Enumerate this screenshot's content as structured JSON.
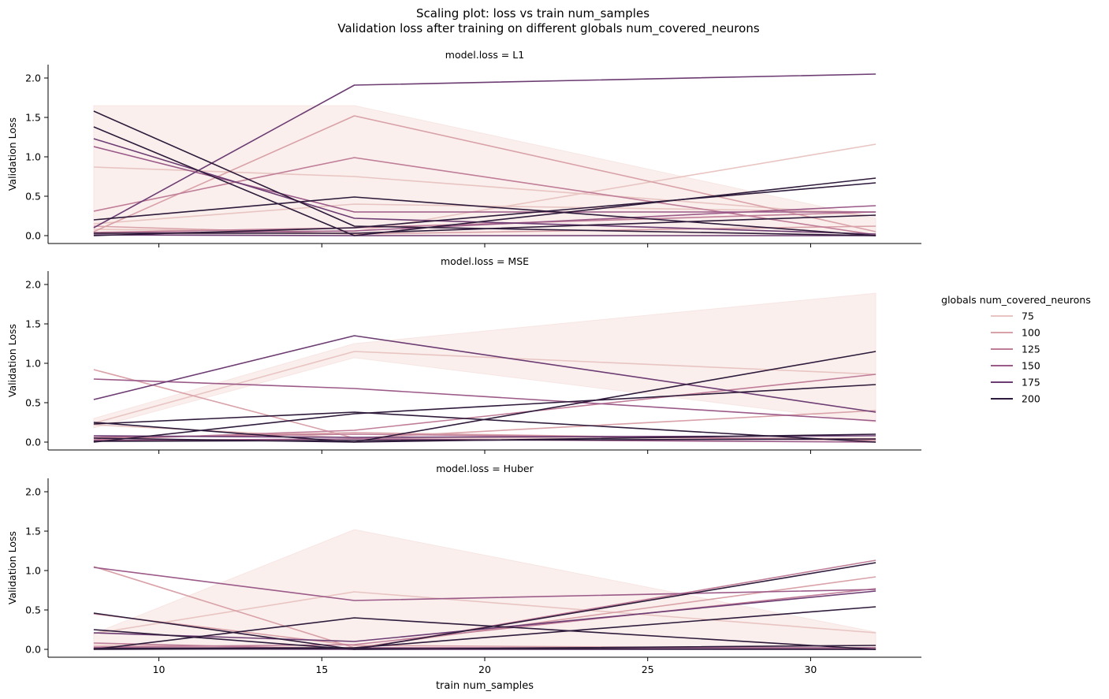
{
  "title_line1": "Scaling plot: loss vs train num_samples",
  "title_line2": "Validation loss after training on different globals num_covered_neurons",
  "xlabel": "train num_samples",
  "ylabel": "Validation Loss",
  "legend": {
    "title": "globals num_covered_neurons",
    "entries": [
      {
        "label": "75",
        "color": "#e8c5c2"
      },
      {
        "label": "100",
        "color": "#d9a1a8"
      },
      {
        "label": "125",
        "color": "#c07d98"
      },
      {
        "label": "150",
        "color": "#9b5a88"
      },
      {
        "label": "175",
        "color": "#6c3c72"
      },
      {
        "label": "200",
        "color": "#2e1a3a"
      }
    ]
  },
  "chart_data": [
    {
      "type": "line",
      "title": "model.loss = L1",
      "x": [
        8,
        16,
        32
      ],
      "xlim": [
        6.6,
        33.4
      ],
      "ylim": [
        -0.1,
        2.17
      ],
      "xticks": [
        10,
        15,
        20,
        25,
        30
      ],
      "yticks": [
        0.0,
        0.5,
        1.0,
        1.5,
        2.0
      ],
      "band": {
        "lower": [
          0.02,
          0.0,
          0.0
        ],
        "upper": [
          1.65,
          1.65,
          0.22
        ]
      },
      "series": [
        {
          "name": "75",
          "values": [
            0.87,
            0.75,
            0.25
          ]
        },
        {
          "name": "75",
          "values": [
            0.15,
            0.4,
            0.3
          ]
        },
        {
          "name": "75",
          "values": [
            0.08,
            0.05,
            1.16
          ]
        },
        {
          "name": "100",
          "values": [
            0.05,
            1.52,
            0.05
          ]
        },
        {
          "name": "100",
          "values": [
            0.12,
            0.02,
            0.12
          ]
        },
        {
          "name": "125",
          "values": [
            0.31,
            0.99,
            0.01
          ]
        },
        {
          "name": "125",
          "values": [
            0.04,
            0.1,
            0.3
          ]
        },
        {
          "name": "150",
          "values": [
            1.13,
            0.3,
            0.3
          ]
        },
        {
          "name": "150",
          "values": [
            0.03,
            0.06,
            0.38
          ]
        },
        {
          "name": "175",
          "values": [
            0.1,
            1.91,
            2.05
          ]
        },
        {
          "name": "175",
          "values": [
            1.23,
            0.22,
            0.02
          ]
        },
        {
          "name": "175",
          "values": [
            0.01,
            0.0,
            0.0
          ]
        },
        {
          "name": "200",
          "values": [
            1.58,
            0.12,
            0.0
          ]
        },
        {
          "name": "200",
          "values": [
            1.38,
            0.0,
            0.73
          ]
        },
        {
          "name": "200",
          "values": [
            0.2,
            0.49,
            0.0
          ]
        },
        {
          "name": "200",
          "values": [
            0.0,
            0.1,
            0.67
          ]
        },
        {
          "name": "200",
          "values": [
            0.03,
            0.03,
            0.26
          ]
        }
      ]
    },
    {
      "type": "line",
      "title": "model.loss = MSE",
      "x": [
        8,
        16,
        32
      ],
      "xlim": [
        6.6,
        33.4
      ],
      "ylim": [
        -0.1,
        2.17
      ],
      "xticks": [
        10,
        15,
        20,
        25,
        30
      ],
      "yticks": [
        0.0,
        0.5,
        1.0,
        1.5,
        2.0
      ],
      "band": {
        "lower": [
          0.18,
          1.07,
          0.25
        ],
        "upper": [
          0.3,
          1.25,
          1.89
        ]
      },
      "series": [
        {
          "name": "75",
          "values": [
            0.24,
            1.15,
            0.86
          ]
        },
        {
          "name": "75",
          "values": [
            0.22,
            0.05,
            0.05
          ]
        },
        {
          "name": "100",
          "values": [
            0.92,
            0.05,
            0.4
          ]
        },
        {
          "name": "100",
          "values": [
            0.05,
            0.12,
            0.02
          ]
        },
        {
          "name": "125",
          "values": [
            0.03,
            0.15,
            0.86
          ]
        },
        {
          "name": "125",
          "values": [
            0.06,
            0.1,
            0.03
          ]
        },
        {
          "name": "150",
          "values": [
            0.8,
            0.68,
            0.27
          ]
        },
        {
          "name": "150",
          "values": [
            0.02,
            0.04,
            0.0
          ]
        },
        {
          "name": "175",
          "values": [
            0.54,
            1.35,
            0.38
          ]
        },
        {
          "name": "175",
          "values": [
            0.08,
            0.06,
            0.08
          ]
        },
        {
          "name": "200",
          "values": [
            0.25,
            0.0,
            1.15
          ]
        },
        {
          "name": "200",
          "values": [
            0.23,
            0.38,
            0.0
          ]
        },
        {
          "name": "200",
          "values": [
            0.0,
            0.36,
            0.73
          ]
        },
        {
          "name": "200",
          "values": [
            0.05,
            0.0,
            0.1
          ]
        },
        {
          "name": "200",
          "values": [
            0.01,
            0.02,
            0.04
          ]
        }
      ]
    },
    {
      "type": "line",
      "title": "model.loss = Huber",
      "x": [
        8,
        16,
        32
      ],
      "xlim": [
        6.6,
        33.4
      ],
      "ylim": [
        -0.1,
        2.17
      ],
      "xticks": [
        10,
        15,
        20,
        25,
        30
      ],
      "yticks": [
        0.0,
        0.5,
        1.0,
        1.5,
        2.0
      ],
      "band": {
        "lower": [
          0.0,
          0.0,
          0.0
        ],
        "upper": [
          0.2,
          1.52,
          0.22
        ]
      },
      "series": [
        {
          "name": "75",
          "values": [
            0.2,
            0.73,
            0.21
          ]
        },
        {
          "name": "75",
          "values": [
            0.05,
            0.02,
            0.02
          ]
        },
        {
          "name": "100",
          "values": [
            1.05,
            0.02,
            0.92
          ]
        },
        {
          "name": "100",
          "values": [
            0.45,
            0.05,
            0.01
          ]
        },
        {
          "name": "125",
          "values": [
            0.08,
            0.0,
            1.13
          ]
        },
        {
          "name": "125",
          "values": [
            0.03,
            0.06,
            0.77
          ]
        },
        {
          "name": "150",
          "values": [
            1.04,
            0.62,
            0.76
          ]
        },
        {
          "name": "150",
          "values": [
            0.02,
            0.02,
            0.02
          ]
        },
        {
          "name": "175",
          "values": [
            0.21,
            0.1,
            0.74
          ]
        },
        {
          "name": "175",
          "values": [
            0.01,
            0.0,
            0.0
          ]
        },
        {
          "name": "200",
          "values": [
            0.46,
            0.0,
            1.1
          ]
        },
        {
          "name": "200",
          "values": [
            0.25,
            0.0,
            0.05
          ]
        },
        {
          "name": "200",
          "values": [
            0.0,
            0.4,
            0.0
          ]
        },
        {
          "name": "200",
          "values": [
            0.01,
            0.02,
            0.54
          ]
        },
        {
          "name": "200",
          "values": [
            0.0,
            0.01,
            0.0
          ]
        }
      ]
    }
  ]
}
